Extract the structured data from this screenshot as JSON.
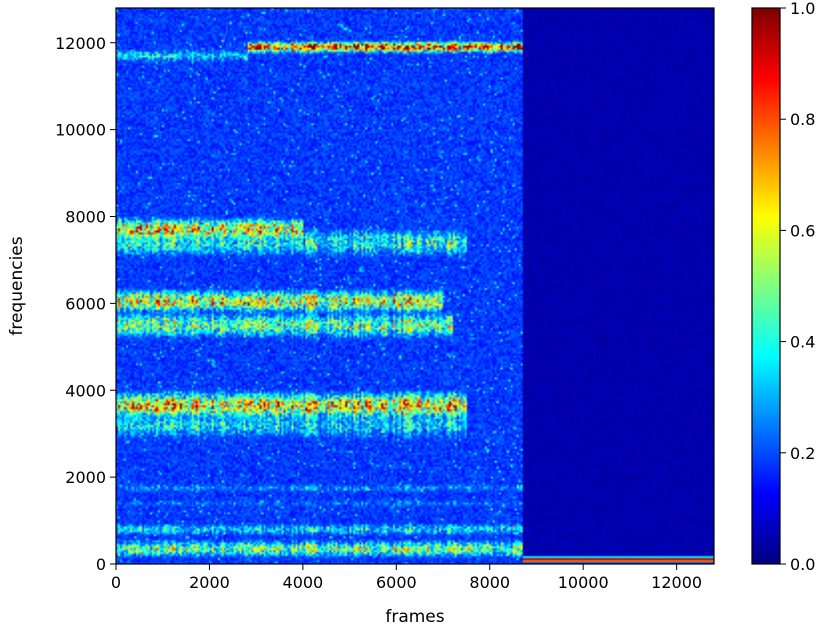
{
  "chart_data": {
    "type": "heatmap",
    "title": "",
    "xlabel": "frames",
    "ylabel": "frequencies",
    "xlim": [
      0,
      12800
    ],
    "ylim": [
      0,
      12800
    ],
    "x_ticks": [
      0,
      2000,
      4000,
      6000,
      8000,
      10000,
      12000
    ],
    "y_ticks": [
      0,
      2000,
      4000,
      6000,
      8000,
      10000,
      12000
    ],
    "colorbar": {
      "colormap": "jet",
      "range": [
        0.0,
        1.0
      ],
      "ticks": [
        "0.0",
        "0.2",
        "0.4",
        "0.6",
        "0.8",
        "1.0"
      ]
    },
    "grid": false,
    "signal_end_frame": 8700,
    "bands": [
      {
        "freq": 11900,
        "spread": 120,
        "intensity": 0.95,
        "x_start": 2800,
        "x_end": 8700
      },
      {
        "freq": 11700,
        "spread": 150,
        "intensity": 0.4,
        "x_start": 0,
        "x_end": 2800
      },
      {
        "freq": 7700,
        "spread": 250,
        "intensity": 0.75,
        "x_start": 0,
        "x_end": 4000
      },
      {
        "freq": 7400,
        "spread": 350,
        "intensity": 0.45,
        "x_start": 0,
        "x_end": 7500
      },
      {
        "freq": 6050,
        "spread": 250,
        "intensity": 0.7,
        "x_start": 0,
        "x_end": 7000
      },
      {
        "freq": 5500,
        "spread": 300,
        "intensity": 0.55,
        "x_start": 0,
        "x_end": 7200
      },
      {
        "freq": 3650,
        "spread": 300,
        "intensity": 0.75,
        "x_start": 0,
        "x_end": 7500
      },
      {
        "freq": 3200,
        "spread": 350,
        "intensity": 0.4,
        "x_start": 0,
        "x_end": 7500
      },
      {
        "freq": 1750,
        "spread": 100,
        "intensity": 0.3,
        "x_start": 0,
        "x_end": 8700
      },
      {
        "freq": 1400,
        "spread": 100,
        "intensity": 0.25,
        "x_start": 0,
        "x_end": 8700
      },
      {
        "freq": 800,
        "spread": 150,
        "intensity": 0.4,
        "x_start": 0,
        "x_end": 8700
      },
      {
        "freq": 350,
        "spread": 200,
        "intensity": 0.55,
        "x_start": 0,
        "x_end": 8700
      },
      {
        "freq": 100,
        "spread": 60,
        "intensity": 1.0,
        "x_start": 8700,
        "x_end": 12800
      }
    ]
  }
}
